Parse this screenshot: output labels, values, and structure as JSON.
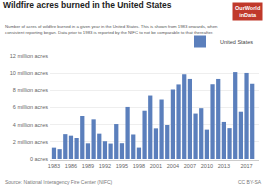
{
  "chart_data": {
    "type": "bar",
    "title": "Wildfire acres burned in the United States",
    "subtitle": "Number of acres of wildfire burned in a given year in the United States. This is shown from 1983 onwards, when\nconsistent reporting began. Data prior to 1983 is reported by the NIFC to not be comparable to that thereafter.",
    "annotations": [
      {
        "text": "Source: National Interagency Fire Center (NIFC)"
      },
      {
        "text": "CC BY-SA"
      },
      {
        "text": "OurWorld\ninData",
        "color": "#c0392b"
      }
    ],
    "x": [
      1983,
      1984,
      1985,
      1986,
      1987,
      1988,
      1989,
      1990,
      1991,
      1992,
      1993,
      1994,
      1995,
      1996,
      1997,
      1998,
      1999,
      2000,
      2001,
      2002,
      2003,
      2004,
      2005,
      2006,
      2007,
      2008,
      2009,
      2010,
      2011,
      2012,
      2013,
      2014,
      2015,
      2016,
      2017,
      2018
    ],
    "series": [
      {
        "name": "United States",
        "color": "#5b7fbc",
        "values": [
          1323666,
          1148409,
          2896147,
          2719162,
          2447296,
          5009290,
          1827310,
          4621621,
          2953578,
          2069929,
          1797574,
          4073579,
          1840546,
          6065998,
          2856959,
          1329704,
          5626093,
          7393493,
          3570911,
          6931299,
          3960842,
          8097880,
          8689389,
          9873745,
          9328045,
          5292468,
          5921786,
          3422724,
          8711367,
          9326238,
          4319546,
          3595613,
          10125149,
          5509995,
          10026086,
          8767492
        ]
      }
    ],
    "xlim": [
      1982.3,
      2019.2
    ],
    "xticks": [
      1983,
      1986,
      1989,
      1992,
      1995,
      1998,
      2001,
      2004,
      2007,
      2010,
      2013,
      2017
    ],
    "ylim": [
      0,
      12000000
    ],
    "yticks": [
      {
        "value": 0,
        "label": "0 acres"
      },
      {
        "value": 2000000,
        "label": "2 million acres"
      },
      {
        "value": 4000000,
        "label": "4 million acres"
      },
      {
        "value": 6000000,
        "label": "6 million acres"
      },
      {
        "value": 8000000,
        "label": "8 million acres"
      },
      {
        "value": 10000000,
        "label": "10 million acres"
      },
      {
        "value": 12000000,
        "label": "12 million acres"
      }
    ],
    "grid": true,
    "legend": "upper right"
  }
}
